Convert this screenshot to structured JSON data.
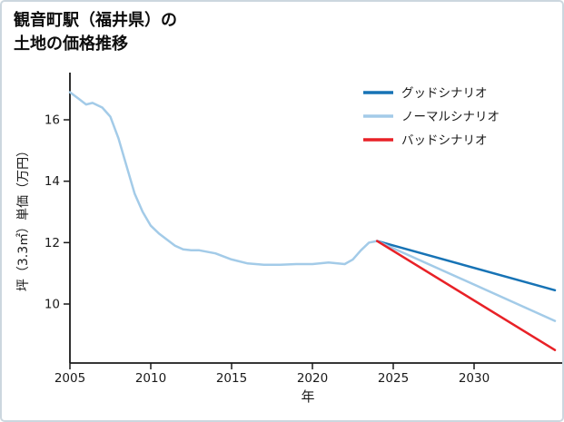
{
  "title": {
    "line1": "観音町駅（福井県）の",
    "line2": "土地の価格推移"
  },
  "chart_data": {
    "type": "line",
    "title": "観音町駅（福井県）の土地の価格推移",
    "xlabel": "年",
    "ylabel": "坪（3.3㎡）単価（万円）",
    "xlim": [
      2004.5,
      2035.5
    ],
    "ylim": [
      8.1,
      17.5
    ],
    "xticks": [
      2005,
      2010,
      2015,
      2020,
      2025,
      2030
    ],
    "yticks": [
      10,
      12,
      14,
      16
    ],
    "grid": false,
    "legend_position": "upper right",
    "colors": {
      "good": "#1773b5",
      "normal": "#a3cbe8",
      "bad": "#e82127",
      "history": "#a3cbe8",
      "axis": "#1a1a1a",
      "legend_text": "#555555"
    },
    "legend": [
      {
        "id": "good",
        "label": "グッドシナリオ"
      },
      {
        "id": "normal",
        "label": "ノーマルシナリオ"
      },
      {
        "id": "bad",
        "label": "バッドシナリオ"
      }
    ],
    "series": [
      {
        "name": "history",
        "color_id": "history",
        "x": [
          2005,
          2005.5,
          2006,
          2006.4,
          2007,
          2007.5,
          2008,
          2008.5,
          2009,
          2009.5,
          2010,
          2010.5,
          2011,
          2011.5,
          2012,
          2012.5,
          2013,
          2014,
          2015,
          2016,
          2017,
          2018,
          2019,
          2020,
          2021,
          2022,
          2022.5,
          2023,
          2023.5,
          2024
        ],
        "y": [
          16.9,
          16.7,
          16.5,
          16.55,
          16.4,
          16.1,
          15.4,
          14.5,
          13.6,
          13.0,
          12.55,
          12.3,
          12.1,
          11.9,
          11.78,
          11.75,
          11.75,
          11.65,
          11.45,
          11.32,
          11.28,
          11.28,
          11.3,
          11.3,
          11.35,
          11.3,
          11.45,
          11.75,
          12.0,
          12.05
        ]
      },
      {
        "name": "good",
        "color_id": "good",
        "x": [
          2024,
          2035
        ],
        "y": [
          12.05,
          10.45
        ]
      },
      {
        "name": "normal",
        "color_id": "normal",
        "x": [
          2024,
          2035
        ],
        "y": [
          12.05,
          9.45
        ]
      },
      {
        "name": "bad",
        "color_id": "bad",
        "x": [
          2024,
          2035
        ],
        "y": [
          12.05,
          8.5
        ]
      }
    ]
  }
}
